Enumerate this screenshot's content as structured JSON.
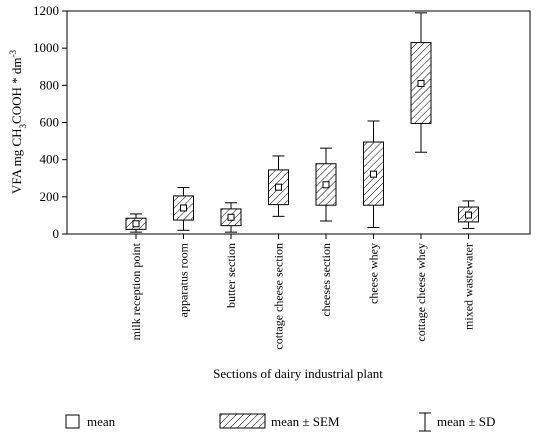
{
  "chart_data": {
    "type": "box",
    "ylabel_parts": {
      "pre": "VFA mg CH",
      "sub1": "3",
      "mid": "COOH * dm",
      "sup": "-3"
    },
    "xlabel": "Sections of dairy industrial plant",
    "ylim": [
      0,
      1200
    ],
    "yticks": [
      0,
      200,
      400,
      600,
      800,
      1000,
      1200
    ],
    "categories": [
      "milk reception point",
      "apparatus room",
      "butter section",
      "cottage cheese section",
      "cheeses section",
      "cheese whey",
      "cottage cheese whey",
      "mixed wastewater"
    ],
    "series": [
      {
        "name": "mean",
        "values": [
          55,
          140,
          90,
          252,
          265,
          322,
          810,
          102
        ]
      },
      {
        "name": "mean ± SEM",
        "low": [
          25,
          75,
          45,
          158,
          155,
          155,
          595,
          65
        ],
        "high": [
          85,
          205,
          135,
          345,
          378,
          495,
          1030,
          145
        ]
      },
      {
        "name": "mean ± SD",
        "low": [
          10,
          20,
          10,
          95,
          70,
          35,
          440,
          30
        ],
        "high": [
          108,
          250,
          168,
          420,
          462,
          608,
          1190,
          178
        ]
      }
    ],
    "legend": {
      "placement": "bottom",
      "items": [
        {
          "marker": "mean-square",
          "label": "mean"
        },
        {
          "marker": "hatched-box",
          "label": "mean ± SEM"
        },
        {
          "marker": "whisker",
          "label": "mean ± SD"
        }
      ]
    },
    "grid": false
  }
}
